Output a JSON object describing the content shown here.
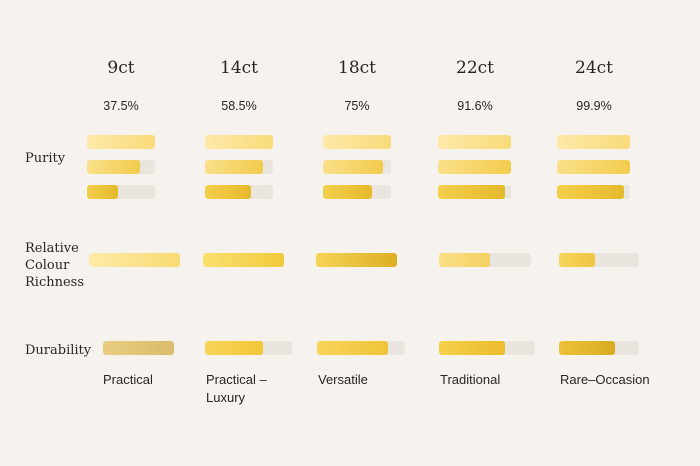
{
  "row_labels": {
    "purity": "Purity",
    "colour_line1": "Relative",
    "colour_line2": "Colour",
    "colour_line3": "Richness",
    "durability": "Durability"
  },
  "colors": {
    "track": "#ebe5e0",
    "light_gold": "#fbe49a",
    "mid_gold": "#f3cf4a",
    "deep_gold": "#e2b529",
    "bronze_gold": "#dcc27a"
  },
  "karats": [
    {
      "name": "9ct",
      "purity": "37.5%",
      "purity_bars": [
        1.0,
        0.78,
        0.45
      ],
      "colour_level": 1.0,
      "durability_level": 1.0,
      "usage_line1": "Practical",
      "usage_line2": ""
    },
    {
      "name": "14ct",
      "purity": "58.5%",
      "purity_bars": [
        1.0,
        0.86,
        0.68
      ],
      "colour_level": 1.0,
      "durability_level": 0.67,
      "usage_line1": "Practical –",
      "usage_line2": "Luxury"
    },
    {
      "name": "18ct",
      "purity": "75%",
      "purity_bars": [
        1.0,
        0.88,
        0.72
      ],
      "colour_level": 1.0,
      "durability_level": 0.81,
      "usage_line1": "Versatile",
      "usage_line2": ""
    },
    {
      "name": "22ct",
      "purity": "91.6%",
      "purity_bars": [
        1.0,
        1.0,
        0.92
      ],
      "colour_level": 0.55,
      "durability_level": 0.69,
      "usage_line1": "Traditional",
      "usage_line2": ""
    },
    {
      "name": "24ct",
      "purity": "99.9%",
      "purity_bars": [
        1.0,
        1.0,
        0.92
      ],
      "colour_level": 0.45,
      "durability_level": 0.7,
      "usage_line1": "Rare–Occasion",
      "usage_line2": ""
    }
  ]
}
